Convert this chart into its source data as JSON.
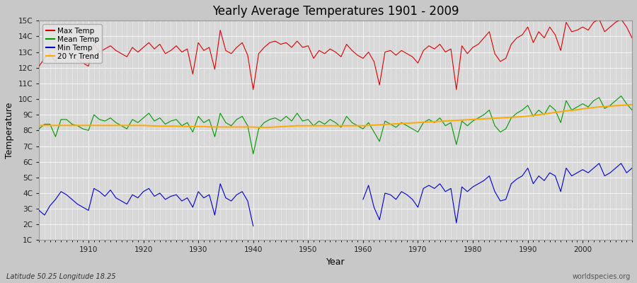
{
  "title": "Yearly Average Temperatures 1901 - 2009",
  "xlabel": "Year",
  "ylabel": "Temperature",
  "subtitle_left": "Latitude 50.25 Longitude 18.25",
  "subtitle_right": "worldspecies.org",
  "legend_labels": [
    "Max Temp",
    "Mean Temp",
    "Min Temp",
    "20 Yr Trend"
  ],
  "line_colors": [
    "#dd0000",
    "#009900",
    "#0000cc",
    "#ffaa00"
  ],
  "bg_color": "#c8c8c8",
  "plot_bg_color": "#d8d8d8",
  "grid_color": "#ffffff",
  "ytick_labels": [
    "1C",
    "2C",
    "3C",
    "4C",
    "5C",
    "6C",
    "7C",
    "8C",
    "9C",
    "10C",
    "11C",
    "12C",
    "13C",
    "14C",
    "15C"
  ],
  "ytick_values": [
    1,
    2,
    3,
    4,
    5,
    6,
    7,
    8,
    9,
    10,
    11,
    12,
    13,
    14,
    15
  ],
  "xticks": [
    1910,
    1920,
    1930,
    1940,
    1950,
    1960,
    1970,
    1980,
    1990,
    2000
  ],
  "xlim": [
    1901,
    2009
  ],
  "ylim": [
    1,
    15
  ],
  "years": [
    1901,
    1902,
    1903,
    1904,
    1905,
    1906,
    1907,
    1908,
    1909,
    1910,
    1911,
    1912,
    1913,
    1914,
    1915,
    1916,
    1917,
    1918,
    1919,
    1920,
    1921,
    1922,
    1923,
    1924,
    1925,
    1926,
    1927,
    1928,
    1929,
    1930,
    1931,
    1932,
    1933,
    1934,
    1935,
    1936,
    1937,
    1938,
    1939,
    1940,
    1941,
    1942,
    1943,
    1944,
    1945,
    1946,
    1947,
    1948,
    1949,
    1950,
    1951,
    1952,
    1953,
    1954,
    1955,
    1956,
    1957,
    1958,
    1959,
    1960,
    1961,
    1962,
    1963,
    1964,
    1965,
    1966,
    1967,
    1968,
    1969,
    1970,
    1971,
    1972,
    1973,
    1974,
    1975,
    1976,
    1977,
    1978,
    1979,
    1980,
    1981,
    1982,
    1983,
    1984,
    1985,
    1986,
    1987,
    1988,
    1989,
    1990,
    1991,
    1992,
    1993,
    1994,
    1995,
    1996,
    1997,
    1998,
    1999,
    2000,
    2001,
    2002,
    2003,
    2004,
    2005,
    2006,
    2007,
    2008,
    2009
  ],
  "max_temp": [
    12.1,
    12.6,
    12.9,
    12.4,
    13.0,
    13.2,
    12.8,
    12.5,
    12.3,
    12.1,
    13.5,
    13.0,
    13.2,
    13.4,
    13.1,
    12.9,
    12.7,
    13.3,
    13.0,
    13.3,
    13.6,
    13.2,
    13.5,
    12.9,
    13.1,
    13.4,
    13.0,
    13.2,
    11.6,
    13.6,
    13.1,
    13.3,
    11.9,
    14.4,
    13.1,
    12.9,
    13.3,
    13.6,
    12.8,
    10.6,
    12.9,
    13.3,
    13.6,
    13.7,
    13.5,
    13.6,
    13.3,
    13.7,
    13.3,
    13.4,
    12.6,
    13.1,
    12.9,
    13.2,
    13.0,
    12.7,
    13.5,
    13.1,
    12.8,
    12.6,
    13.0,
    12.4,
    10.9,
    13.0,
    13.1,
    12.8,
    13.1,
    12.9,
    12.7,
    12.3,
    13.1,
    13.4,
    13.2,
    13.5,
    13.0,
    13.2,
    10.6,
    13.4,
    12.9,
    13.3,
    13.5,
    13.9,
    14.3,
    12.9,
    12.4,
    12.6,
    13.5,
    13.9,
    14.1,
    14.6,
    13.6,
    14.3,
    13.9,
    14.6,
    14.1,
    13.1,
    14.9,
    14.3,
    14.4,
    14.6,
    14.4,
    14.9,
    15.1,
    14.3,
    14.6,
    14.9,
    15.1,
    14.6,
    13.9
  ],
  "mean_temp": [
    8.1,
    8.4,
    8.4,
    7.6,
    8.7,
    8.7,
    8.4,
    8.3,
    8.1,
    8.0,
    9.0,
    8.7,
    8.6,
    8.8,
    8.5,
    8.3,
    8.1,
    8.7,
    8.5,
    8.8,
    9.1,
    8.6,
    8.8,
    8.4,
    8.6,
    8.7,
    8.3,
    8.5,
    7.9,
    8.9,
    8.5,
    8.7,
    7.6,
    9.1,
    8.5,
    8.3,
    8.7,
    8.9,
    8.3,
    6.5,
    8.1,
    8.5,
    8.7,
    8.8,
    8.6,
    8.9,
    8.6,
    9.1,
    8.6,
    8.7,
    8.3,
    8.6,
    8.4,
    8.7,
    8.5,
    8.2,
    8.9,
    8.5,
    8.3,
    8.1,
    8.5,
    7.9,
    7.3,
    8.6,
    8.4,
    8.2,
    8.5,
    8.3,
    8.1,
    7.9,
    8.5,
    8.7,
    8.5,
    8.8,
    8.3,
    8.5,
    7.1,
    8.6,
    8.3,
    8.6,
    8.8,
    9.0,
    9.3,
    8.3,
    7.9,
    8.1,
    8.8,
    9.1,
    9.3,
    9.6,
    8.9,
    9.3,
    9.0,
    9.6,
    9.3,
    8.5,
    9.9,
    9.3,
    9.5,
    9.7,
    9.5,
    9.9,
    10.1,
    9.4,
    9.6,
    9.9,
    10.2,
    9.7,
    9.3
  ],
  "min_temp": [
    2.9,
    2.6,
    3.2,
    3.6,
    4.1,
    3.9,
    3.6,
    3.3,
    3.1,
    2.9,
    4.3,
    4.1,
    3.8,
    4.2,
    3.7,
    3.5,
    3.3,
    3.9,
    3.7,
    4.1,
    4.3,
    3.8,
    4.0,
    3.6,
    3.8,
    3.9,
    3.5,
    3.7,
    3.1,
    4.1,
    3.7,
    3.9,
    2.6,
    4.6,
    3.7,
    3.5,
    3.9,
    4.1,
    3.5,
    1.9,
    null,
    null,
    null,
    null,
    null,
    null,
    null,
    null,
    null,
    null,
    null,
    null,
    null,
    null,
    null,
    null,
    null,
    null,
    null,
    3.6,
    4.5,
    3.1,
    2.3,
    4.0,
    3.9,
    3.6,
    4.1,
    3.9,
    3.6,
    3.1,
    4.3,
    4.5,
    4.3,
    4.6,
    4.1,
    4.3,
    2.1,
    4.4,
    4.1,
    4.4,
    4.6,
    4.8,
    5.1,
    4.1,
    3.5,
    3.6,
    4.6,
    4.9,
    5.1,
    5.6,
    4.6,
    5.1,
    4.8,
    5.3,
    5.1,
    4.1,
    5.6,
    5.1,
    5.3,
    5.5,
    5.3,
    5.6,
    5.9,
    5.1,
    5.3,
    5.6,
    5.9,
    5.3,
    5.6
  ],
  "trend_temp": [
    8.32,
    8.32,
    8.32,
    8.32,
    8.32,
    8.32,
    8.32,
    8.32,
    8.32,
    8.32,
    8.32,
    8.32,
    8.32,
    8.32,
    8.32,
    8.32,
    8.32,
    8.32,
    8.32,
    8.32,
    8.3,
    8.29,
    8.28,
    8.28,
    8.28,
    8.28,
    8.26,
    8.25,
    8.25,
    8.25,
    8.25,
    8.23,
    8.22,
    8.22,
    8.22,
    8.22,
    8.22,
    8.22,
    8.22,
    8.22,
    8.2,
    8.2,
    8.2,
    8.22,
    8.24,
    8.26,
    8.28,
    8.3,
    8.3,
    8.3,
    8.3,
    8.3,
    8.3,
    8.3,
    8.3,
    8.3,
    8.3,
    8.3,
    8.3,
    8.3,
    8.32,
    8.34,
    8.36,
    8.38,
    8.4,
    8.42,
    8.44,
    8.46,
    8.48,
    8.5,
    8.52,
    8.54,
    8.56,
    8.58,
    8.6,
    8.62,
    8.64,
    8.66,
    8.68,
    8.7,
    8.72,
    8.74,
    8.76,
    8.78,
    8.8,
    8.82,
    8.84,
    8.86,
    8.88,
    8.92,
    8.95,
    9.0,
    9.05,
    9.1,
    9.15,
    9.2,
    9.25,
    9.28,
    9.32,
    9.38,
    9.42,
    9.46,
    9.5,
    9.52,
    9.55,
    9.58,
    9.6,
    9.62,
    9.65
  ]
}
